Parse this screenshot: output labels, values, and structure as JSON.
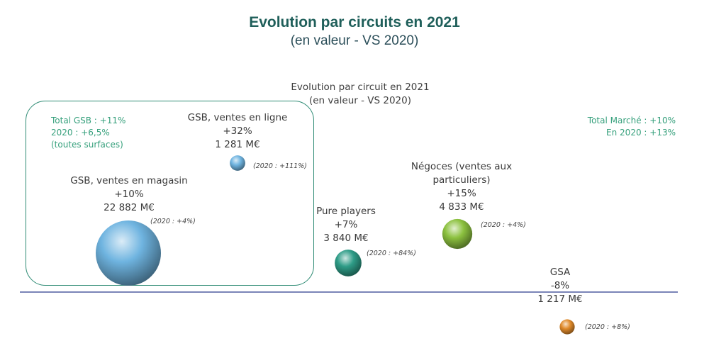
{
  "title": "Evolution par circuits en 2021",
  "subtitle": "(en valeur - VS 2020)",
  "chart_data": {
    "type": "scatter",
    "title": "Evolution par circuit en 2021",
    "subtitle": "(en valeur - VS 2020)",
    "y_unit": "% évolution 2021 vs 2020",
    "points": [
      {
        "name": "GSB, ventes en magasin",
        "evolution": "+10%",
        "y": 10,
        "value": "22 882  M€",
        "value_meuros": 22882,
        "prev": "(2020 : +4%)",
        "color": "#6fb4e0"
      },
      {
        "name": "GSB, ventes en ligne",
        "evolution": "+32%",
        "y": 32,
        "value": "1 281  M€",
        "value_meuros": 1281,
        "prev": "(2020 : +111%)",
        "color": "#6fb4e0"
      },
      {
        "name": "Pure players",
        "evolution": "+7%",
        "y": 7,
        "value": "3 840  M€",
        "value_meuros": 3840,
        "prev": "(2020 : +84%)",
        "color": "#2e9c87"
      },
      {
        "name": "Négoces (ventes aux particuliers)",
        "evolution": "+15%",
        "y": 15,
        "value": "4 833  M€",
        "value_meuros": 4833,
        "prev": "(2020 : +4%)",
        "color": "#8cc13f"
      },
      {
        "name": "GSA",
        "evolution": "-8%",
        "y": -8,
        "value": "1 217  M€",
        "value_meuros": 1217,
        "prev": "(2020 : +8%)",
        "color": "#e08a2a"
      }
    ],
    "notes": {
      "gsb_total": [
        "Total GSB : +11%",
        "2020 : +6,5%",
        "(toutes surfaces)"
      ],
      "market_total": [
        "Total Marché : +10%",
        "En 2020 : +13%"
      ]
    },
    "grid": false,
    "legend": "none"
  }
}
